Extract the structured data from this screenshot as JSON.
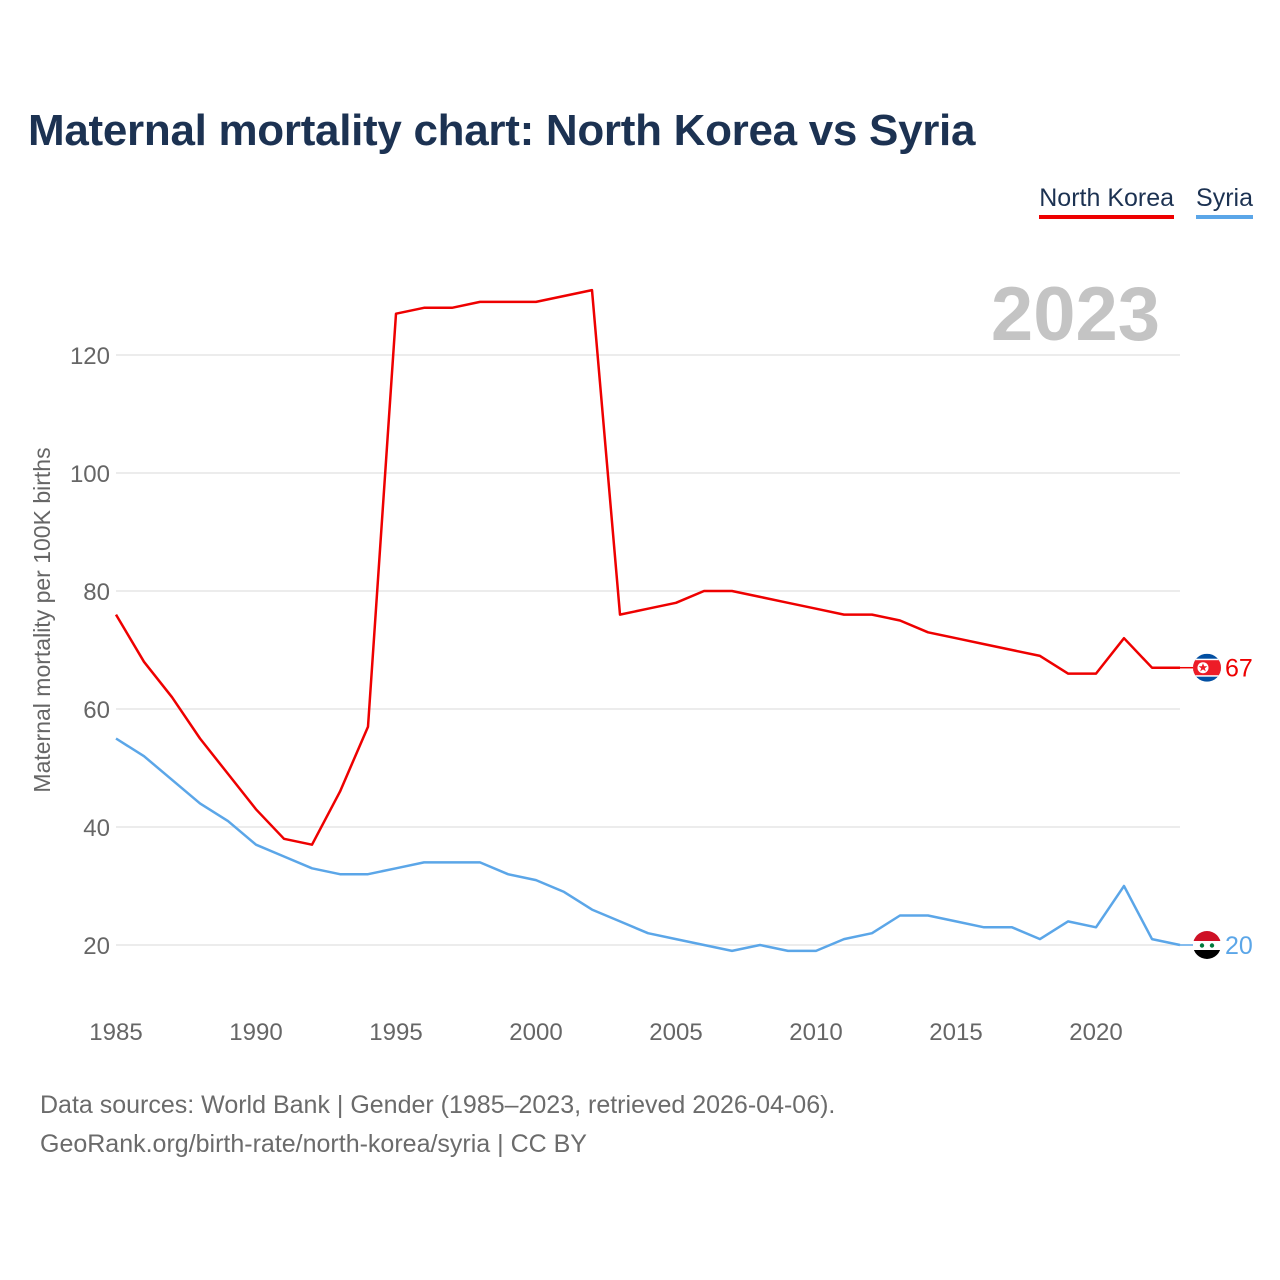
{
  "title": "Maternal mortality chart: North Korea vs Syria",
  "legend": {
    "north_korea": "North Korea",
    "syria": "Syria"
  },
  "year_label": "2023",
  "footer": {
    "line1": "Data sources: World Bank | Gender (1985–2023, retrieved 2026-04-06).",
    "line2": "GeoRank.org/birth-rate/north-korea/syria | CC BY"
  },
  "colors": {
    "north_korea": "#ee0000",
    "syria": "#5ba6e8",
    "title": "#1c3252"
  },
  "chart_data": {
    "type": "line",
    "title": "Maternal mortality chart: North Korea vs Syria",
    "xlabel": "",
    "ylabel": "Maternal mortality per 100K births",
    "xlim": [
      1985,
      2023
    ],
    "ylim": [
      10,
      130
    ],
    "x_ticks": [
      1985,
      1990,
      1995,
      2000,
      2005,
      2010,
      2015,
      2020
    ],
    "y_ticks": [
      20,
      40,
      60,
      80,
      100,
      120
    ],
    "grid": true,
    "legend_position": "top-right",
    "x": [
      1985,
      1986,
      1987,
      1988,
      1989,
      1990,
      1991,
      1992,
      1993,
      1994,
      1995,
      1996,
      1997,
      1998,
      1999,
      2000,
      2001,
      2002,
      2003,
      2004,
      2005,
      2006,
      2007,
      2008,
      2009,
      2010,
      2011,
      2012,
      2013,
      2014,
      2015,
      2016,
      2017,
      2018,
      2019,
      2020,
      2021,
      2022,
      2023
    ],
    "series": [
      {
        "name": "North Korea",
        "end_label": "67",
        "values": [
          76,
          68,
          62,
          55,
          49,
          43,
          38,
          37,
          46,
          57,
          127,
          128,
          128,
          129,
          129,
          129,
          130,
          131,
          76,
          77,
          78,
          80,
          80,
          79,
          78,
          77,
          76,
          76,
          75,
          73,
          72,
          71,
          70,
          69,
          66,
          66,
          72,
          67,
          67
        ]
      },
      {
        "name": "Syria",
        "end_label": "20",
        "values": [
          55,
          52,
          48,
          44,
          41,
          37,
          35,
          33,
          32,
          32,
          33,
          34,
          34,
          34,
          32,
          31,
          29,
          26,
          24,
          22,
          21,
          20,
          19,
          20,
          19,
          19,
          21,
          22,
          25,
          25,
          24,
          23,
          23,
          21,
          24,
          23,
          30,
          21,
          20
        ]
      }
    ]
  }
}
